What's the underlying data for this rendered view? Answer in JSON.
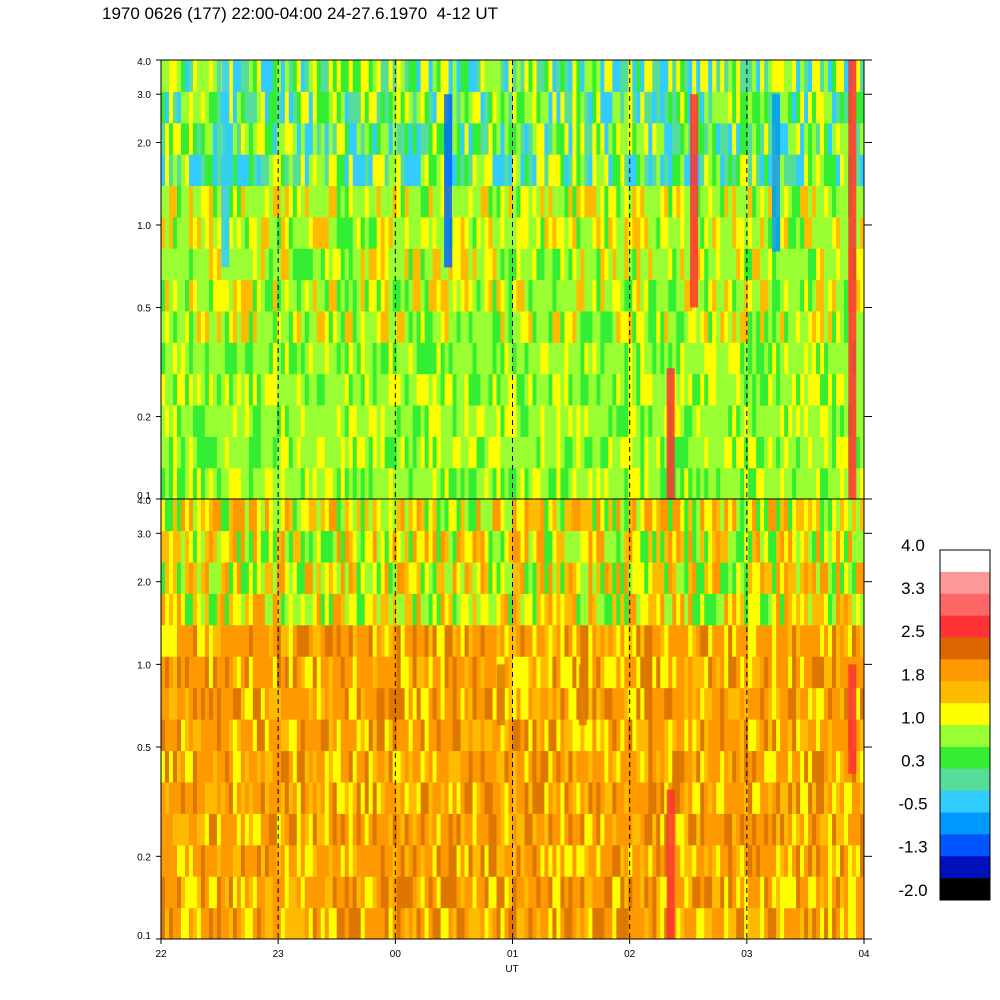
{
  "title": "1970 0626 (177) 22:00-04:00 24-27.6.1970  4-12 UT",
  "chart_data": {
    "type": "heatmap",
    "xlabel": "UT",
    "x_ticks": [
      "22",
      "23",
      "00",
      "01",
      "02",
      "03",
      "04"
    ],
    "x_range_hours": [
      22,
      28
    ],
    "y_scale": "log",
    "y_range": [
      0.1,
      4.0
    ],
    "y_ticks": [
      "0.1",
      "0.2",
      "0.5",
      "1.0",
      "2.0",
      "3.0",
      "4.0"
    ],
    "y_tick_values": [
      0.1,
      0.2,
      0.5,
      1.0,
      2.0,
      3.0,
      4.0
    ],
    "hour_gridlines": "dashed",
    "panels": [
      {
        "name": "upper",
        "dominant_colors": [
          "#99ff33",
          "#33ee33",
          "#ffff00",
          "#33ccff"
        ],
        "features": [
          {
            "hour": 22.55,
            "fmin": 0.7,
            "fmax": 4.0,
            "color": "#33ccff"
          },
          {
            "hour": 24.45,
            "fmin": 0.7,
            "fmax": 3.0,
            "color": "#0066ff"
          },
          {
            "hour": 27.25,
            "fmin": 0.8,
            "fmax": 3.0,
            "color": "#0099ff"
          },
          {
            "hour": 26.35,
            "fmin": 0.1,
            "fmax": 0.3,
            "color": "#ff3333"
          },
          {
            "hour": 26.55,
            "fmin": 0.5,
            "fmax": 3.0,
            "color": "#ff3333"
          },
          {
            "hour": 27.9,
            "fmin": 0.1,
            "fmax": 4.0,
            "color": "#ff3333"
          }
        ]
      },
      {
        "name": "lower",
        "dominant_colors": [
          "#ff9900",
          "#ffbb00",
          "#ffff00",
          "#dd7700"
        ],
        "features": [
          {
            "hour": 24.9,
            "fmin": 0.6,
            "fmax": 1.0,
            "color": "#dd7700"
          },
          {
            "hour": 25.6,
            "fmin": 0.6,
            "fmax": 1.0,
            "color": "#dd7700"
          },
          {
            "hour": 26.35,
            "fmin": 0.1,
            "fmax": 0.35,
            "color": "#ff3333"
          },
          {
            "hour": 27.9,
            "fmin": 0.4,
            "fmax": 1.0,
            "color": "#ff3333"
          }
        ]
      }
    ],
    "colorbar": {
      "labels": [
        "4.0",
        "3.3",
        "2.5",
        "1.8",
        "1.0",
        "0.3",
        "-0.5",
        "-1.3",
        "-2.0"
      ],
      "colors": [
        "#ffffff",
        "#ff9999",
        "#ff6666",
        "#ff3333",
        "#dd6600",
        "#ff9900",
        "#ffbb00",
        "#ffff00",
        "#99ff33",
        "#33ee33",
        "#55dd99",
        "#33ccff",
        "#0099ff",
        "#0055ff",
        "#0011bb",
        "#000000"
      ]
    }
  }
}
